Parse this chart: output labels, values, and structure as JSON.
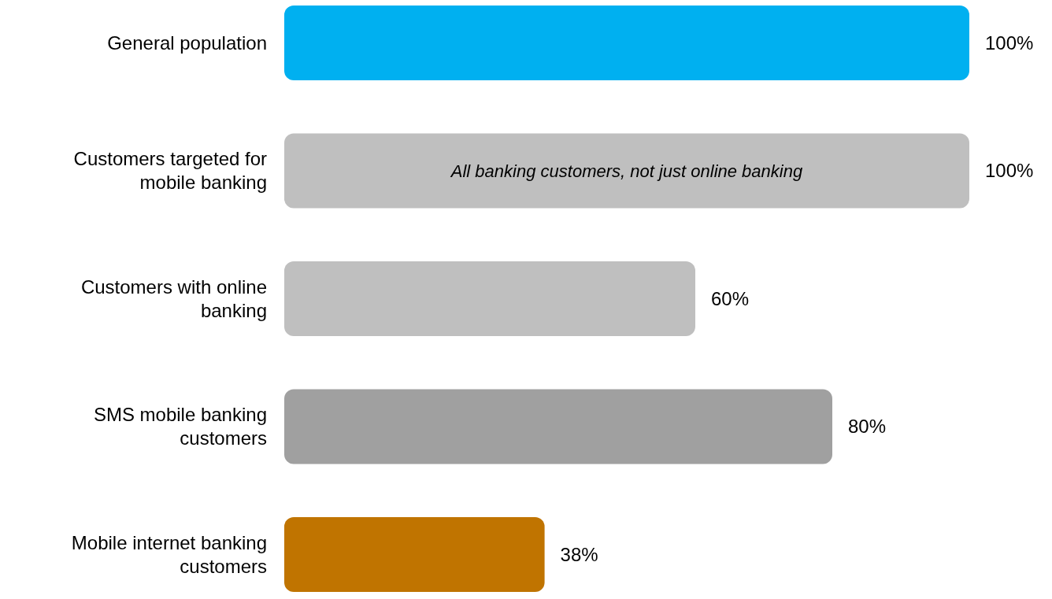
{
  "chart_data": {
    "type": "bar",
    "orientation": "horizontal",
    "categories": [
      "General population",
      "Customers targeted for mobile banking",
      "Customers with online banking",
      "SMS mobile banking customers",
      "Mobile internet banking customers"
    ],
    "values": [
      100,
      100,
      60,
      80,
      38
    ],
    "colors": [
      "#00b0f0",
      "#bfbfbf",
      "#bfbfbf",
      "#a0a0a0",
      "#c07400"
    ],
    "value_labels": [
      "100%",
      "100%",
      "60%",
      "80%",
      "38%"
    ],
    "annotations": [
      "All banking customers, not just online banking"
    ],
    "grid": false,
    "tick_labels": "y"
  }
}
